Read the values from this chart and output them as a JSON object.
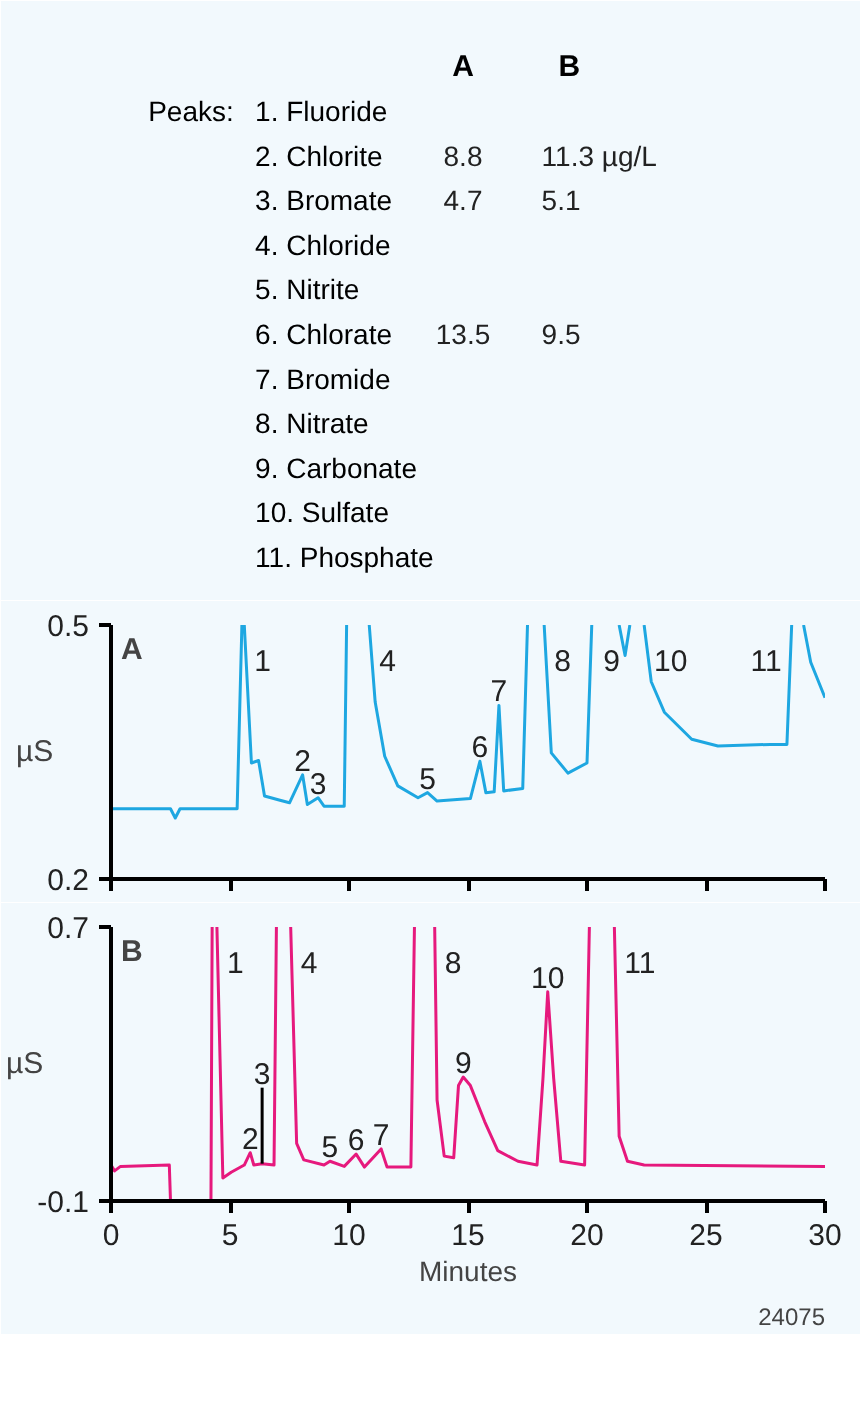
{
  "chart_data": [
    {
      "type": "other",
      "title": "Peaks:",
      "categories": [
        "1. Fluoride",
        "2. Chlorite",
        "3. Bromate",
        "4. Chloride",
        "5. Nitrite",
        "6. Chlorate",
        "7. Bromide",
        "8. Nitrate",
        "9. Carbonate",
        "10. Sulfate",
        "11. Phosphate"
      ],
      "series": [
        {
          "name": "A",
          "values": [
            null,
            8.8,
            4.7,
            null,
            null,
            13.5,
            null,
            null,
            null,
            null,
            null
          ],
          "value_labels": [
            null,
            "8.8",
            "4.7",
            null,
            null,
            "13.5",
            null,
            null,
            null,
            null,
            null
          ]
        },
        {
          "name": "B",
          "values": [
            null,
            11.3,
            5.1,
            null,
            null,
            9.5,
            null,
            null,
            null,
            null,
            null
          ],
          "value_labels": [
            null,
            "11.3 µg/L",
            "5.1",
            null,
            null,
            "9.5",
            null,
            null,
            null,
            null,
            null
          ]
        }
      ]
    },
    {
      "type": "line",
      "title": "A",
      "ylabel": "µS",
      "xlim": [
        0,
        30
      ],
      "ylim": [
        0.2,
        0.5
      ],
      "yticks": [
        0.2,
        0.5
      ],
      "xticks": [
        {
          "value": 0,
          "label": null
        },
        {
          "value": 5,
          "label": null
        },
        {
          "value": 10,
          "label": null
        },
        {
          "value": 15,
          "label": null
        },
        {
          "value": 20,
          "label": null
        },
        {
          "value": 25,
          "label": null
        },
        {
          "value": 30,
          "label": null
        }
      ],
      "tick_labels": "y",
      "grid": false,
      "series": [
        {
          "color": "#1ea7e1",
          "x": [
            0,
            2.5,
            2.7,
            2.9,
            5.3,
            5.5,
            5.55,
            5.6,
            5.9,
            6.2,
            6.45,
            7.1,
            7.5,
            8.05,
            8.25,
            8.7,
            8.95,
            9.8,
            9.9,
            10.2,
            10.85,
            11.1,
            11.5,
            12.05,
            12.9,
            13.3,
            13.7,
            15.1,
            15.5,
            15.75,
            16.1,
            16.3,
            16.5,
            17.3,
            17.5,
            17.9,
            18.2,
            18.5,
            19.2,
            20.0,
            20.2,
            20.8,
            21.35,
            21.6,
            21.8,
            22.1,
            22.4,
            22.7,
            23.25,
            24.4,
            25.5,
            27.7,
            28.4,
            28.6,
            28.9,
            29.1,
            29.4,
            30
          ],
          "values": [
            0.283,
            0.283,
            0.272,
            0.283,
            0.283,
            0.5,
            null,
            0.5,
            0.337,
            0.34,
            0.298,
            0.293,
            0.29,
            0.323,
            0.288,
            0.296,
            0.286,
            0.286,
            0.5,
            null,
            0.5,
            0.409,
            0.345,
            0.31,
            0.296,
            0.302,
            0.292,
            0.295,
            0.339,
            0.302,
            0.303,
            0.405,
            0.304,
            0.307,
            0.5,
            null,
            0.5,
            0.349,
            0.325,
            0.337,
            0.5,
            null,
            0.5,
            0.464,
            0.5,
            null,
            0.5,
            0.433,
            0.397,
            0.365,
            0.357,
            0.359,
            0.359,
            0.5,
            null,
            0.5,
            0.456,
            0.414
          ]
        }
      ],
      "annotations": [
        {
          "text": "1",
          "x": 5.6,
          "y": 0.5
        },
        {
          "text": "2",
          "x": 8.05,
          "y": 0.323
        },
        {
          "text": "3",
          "x": 8.7,
          "y": 0.296
        },
        {
          "text": "4",
          "x": 10.85,
          "y": 0.5
        },
        {
          "text": "5",
          "x": 13.3,
          "y": 0.302
        },
        {
          "text": "6",
          "x": 15.5,
          "y": 0.339
        },
        {
          "text": "7",
          "x": 16.3,
          "y": 0.405
        },
        {
          "text": "8",
          "x": 18.2,
          "y": 0.5
        },
        {
          "text": "9",
          "x": 21.8,
          "y": 0.5
        },
        {
          "text": "10",
          "x": 22.4,
          "y": 0.5
        },
        {
          "text": "11",
          "x": 28.6,
          "y": 0.5
        }
      ]
    },
    {
      "type": "line",
      "title": "B",
      "ylabel": "µS",
      "xlabel": "Minutes",
      "xlim": [
        0,
        30
      ],
      "ylim": [
        -0.1,
        0.7
      ],
      "yticks": [
        -0.1,
        0.7
      ],
      "xticks": [
        0,
        5,
        10,
        15,
        20,
        25,
        30
      ],
      "grid": false,
      "series": [
        {
          "color": "#e6197d",
          "x": [
            0,
            0.15,
            0.4,
            2.45,
            2.5,
            4.2,
            4.25,
            4.35,
            4.45,
            4.7,
            5.05,
            5.6,
            5.85,
            6.0,
            6.35,
            6.85,
            6.95,
            7.2,
            7.55,
            7.8,
            8.1,
            8.95,
            9.2,
            9.8,
            10.3,
            10.65,
            11.35,
            11.6,
            12.6,
            12.75,
            13.2,
            13.6,
            13.7,
            14.0,
            14.4,
            14.6,
            14.8,
            15.1,
            15.7,
            16.25,
            17.1,
            17.9,
            18.15,
            18.35,
            18.6,
            18.9,
            19.9,
            20.1,
            20.6,
            21.15,
            21.35,
            21.7,
            22.4,
            30
          ],
          "values": [
            0.005,
            -0.012,
            0.001,
            0.005,
            -0.1,
            -0.1,
            0.7,
            null,
            0.7,
            -0.033,
            -0.016,
            0.005,
            0.041,
            0.005,
            0.009,
            0.005,
            0.7,
            null,
            0.7,
            0.068,
            0.02,
            0.005,
            0.016,
            0.001,
            0.037,
            -0.001,
            0.052,
            -0.001,
            -0.001,
            0.7,
            null,
            0.7,
            0.195,
            0.031,
            0.026,
            0.237,
            0.262,
            0.237,
            0.132,
            0.047,
            0.016,
            0.005,
            0.258,
            0.511,
            0.258,
            0.016,
            0.005,
            0.7,
            null,
            0.7,
            0.089,
            0.016,
            0.005,
            0.001
          ]
        }
      ],
      "annotations": [
        {
          "text": "1",
          "x": 4.45,
          "y": 0.7
        },
        {
          "text": "2",
          "x": 5.85,
          "y": 0.041
        },
        {
          "text": "3",
          "x": 6.35,
          "y": 0.009
        },
        {
          "text": "4",
          "x": 7.55,
          "y": 0.7
        },
        {
          "text": "5",
          "x": 9.2,
          "y": 0.016
        },
        {
          "text": "6",
          "x": 10.3,
          "y": 0.037
        },
        {
          "text": "7",
          "x": 11.35,
          "y": 0.052
        },
        {
          "text": "8",
          "x": 13.6,
          "y": 0.7
        },
        {
          "text": "9",
          "x": 14.8,
          "y": 0.262
        },
        {
          "text": "10",
          "x": 18.35,
          "y": 0.511
        },
        {
          "text": "11",
          "x": 21.15,
          "y": 0.7
        },
        "24075"
      ]
    }
  ]
}
